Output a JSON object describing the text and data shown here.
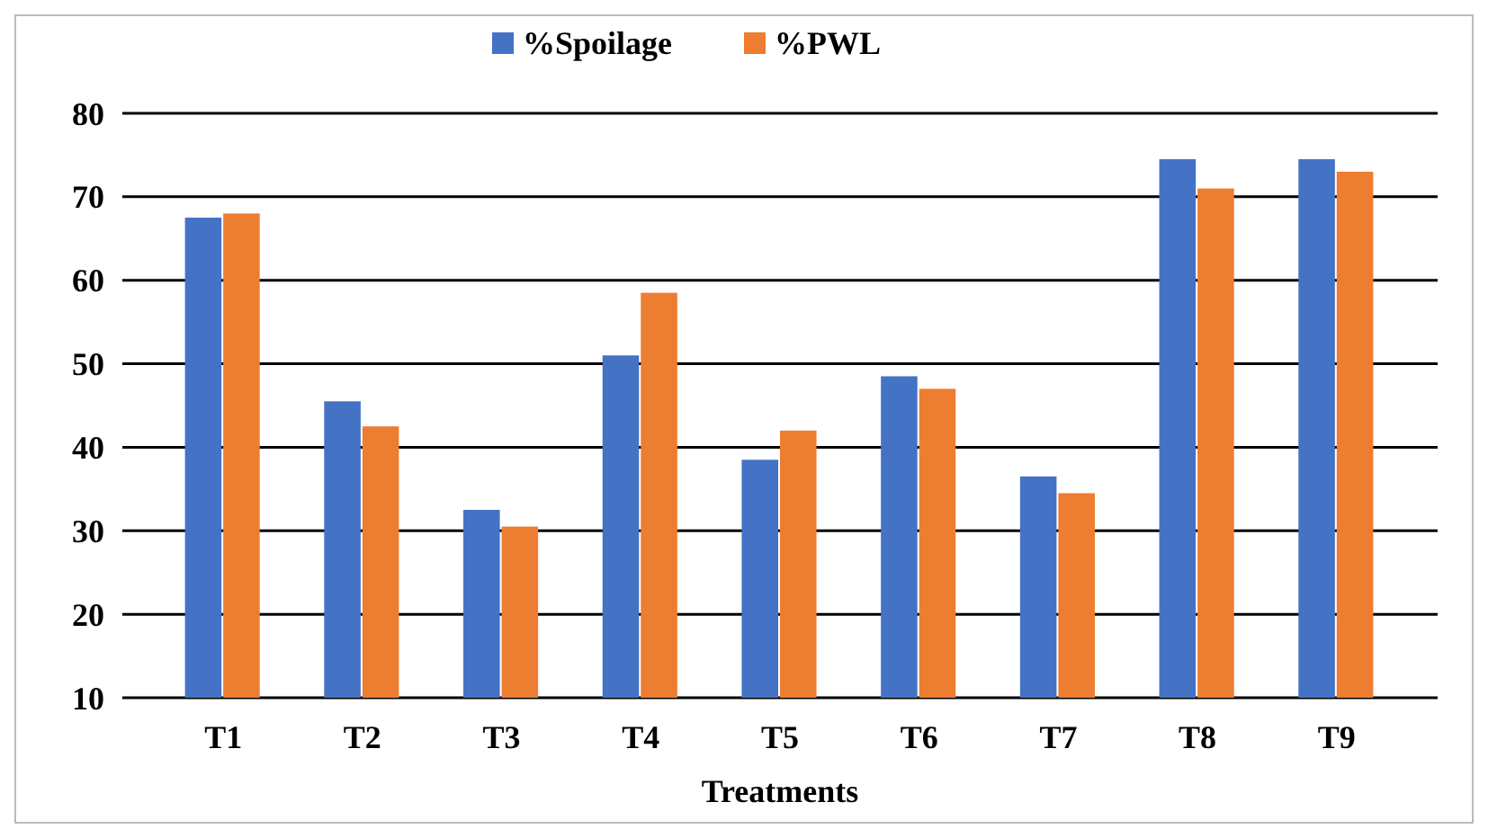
{
  "chart_data": {
    "type": "bar",
    "xlabel": "Treatments",
    "categories": [
      "T1",
      "T2",
      "T3",
      "T4",
      "T5",
      "T6",
      "T7",
      "T8",
      "T9"
    ],
    "series": [
      {
        "name": "%Spoilage",
        "color": "#4472c4",
        "values": [
          67.5,
          45.5,
          32.5,
          51,
          38.5,
          48.5,
          36.5,
          74.5,
          74.5
        ]
      },
      {
        "name": "%PWL",
        "color": "#ed7d31",
        "values": [
          68,
          42.5,
          30.5,
          58.5,
          42,
          47,
          34.5,
          71,
          73
        ]
      }
    ],
    "ylim": [
      10,
      80
    ],
    "yticks": [
      10,
      20,
      30,
      40,
      50,
      60,
      70,
      80
    ],
    "grid": "y",
    "legend": "top"
  }
}
